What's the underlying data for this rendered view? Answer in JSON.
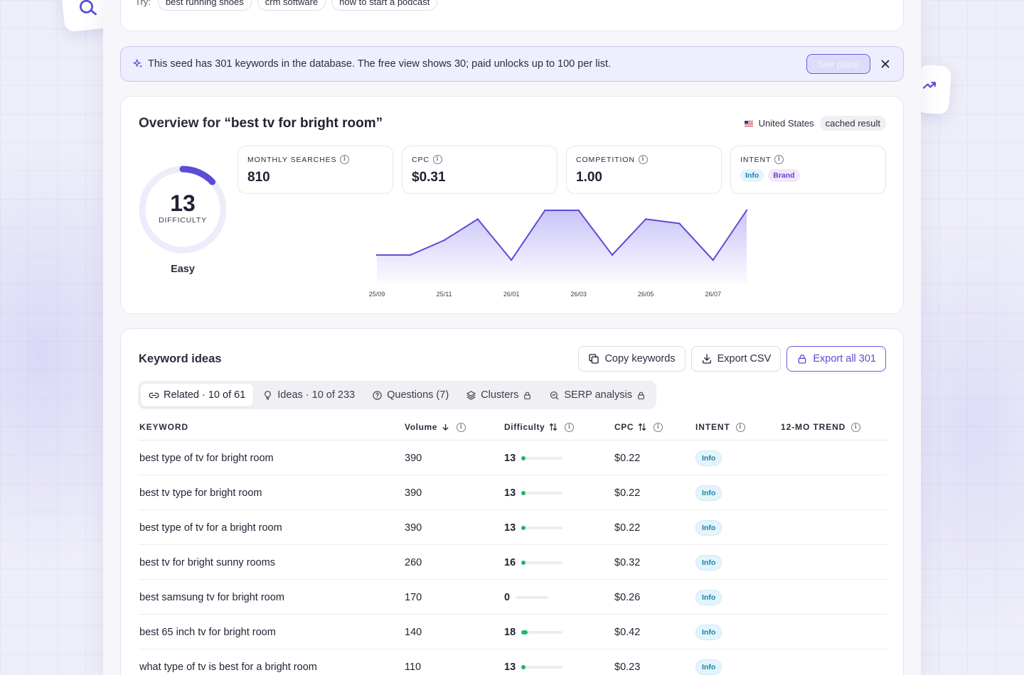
{
  "try": {
    "label": "Try:",
    "chips": [
      "best running shoes",
      "crm software",
      "how to start a podcast"
    ]
  },
  "banner": {
    "text": "This seed has 301 keywords in the database. The free view shows 30; paid unlocks up to 100 per list.",
    "cta": "See plans"
  },
  "overview": {
    "title_prefix": "Overview for",
    "title_query": "“best tv for bright room”",
    "country": "United States",
    "cached": "cached result",
    "difficulty": {
      "value": "13",
      "label": "DIFFICULTY",
      "rating": "Easy",
      "fraction": 0.13
    },
    "metrics": {
      "monthly_searches": {
        "label": "MONTHLY SEARCHES",
        "value": "810"
      },
      "cpc": {
        "label": "CPC",
        "value": "$0.31"
      },
      "competition": {
        "label": "COMPETITION",
        "value": "1.00"
      },
      "intent": {
        "label": "INTENT",
        "badges": [
          "Info",
          "Brand"
        ]
      }
    }
  },
  "chart_data": {
    "type": "area",
    "x": [
      "25/09",
      "25/10",
      "25/11",
      "25/12",
      "26/01",
      "26/02",
      "26/03",
      "26/04",
      "26/05",
      "26/06",
      "26/07",
      "26/08"
    ],
    "tick_labels": [
      "25/09",
      "25/11",
      "26/01",
      "26/03",
      "26/05",
      "26/07"
    ],
    "values": [
      390,
      390,
      590,
      880,
      320,
      1000,
      1000,
      390,
      880,
      820,
      320,
      1000
    ],
    "ylim": [
      0,
      1000
    ],
    "color": "#5b4bd6",
    "grid": false,
    "title": "",
    "xlabel": "",
    "ylabel": ""
  },
  "ideas": {
    "title": "Keyword ideas",
    "actions": {
      "copy": "Copy keywords",
      "export": "Export CSV",
      "export_all": "Export all 301"
    },
    "tabs": [
      "Related · 10 of 61",
      "Ideas · 10 of 233",
      "Questions (7)",
      "Clusters",
      "SERP analysis"
    ],
    "columns": [
      "KEYWORD",
      "Volume",
      "Difficulty",
      "CPC",
      "INTENT",
      "12-MO TREND"
    ],
    "rows": [
      {
        "keyword": "best type of tv for bright room",
        "volume": "390",
        "difficulty": "13",
        "cpc": "$0.22",
        "intent": "Info"
      },
      {
        "keyword": "best tv type for bright room",
        "volume": "390",
        "difficulty": "13",
        "cpc": "$0.22",
        "intent": "Info"
      },
      {
        "keyword": "best type of tv for a bright room",
        "volume": "390",
        "difficulty": "13",
        "cpc": "$0.22",
        "intent": "Info"
      },
      {
        "keyword": "best tv for bright sunny rooms",
        "volume": "260",
        "difficulty": "16",
        "cpc": "$0.32",
        "intent": "Info"
      },
      {
        "keyword": "best samsung tv for bright room",
        "volume": "170",
        "difficulty": "0",
        "cpc": "$0.26",
        "intent": "Info"
      },
      {
        "keyword": "best 65 inch tv for bright room",
        "volume": "140",
        "difficulty": "18",
        "cpc": "$0.42",
        "intent": "Info"
      },
      {
        "keyword": "what type of tv is best for a bright room",
        "volume": "110",
        "difficulty": "13",
        "cpc": "$0.23",
        "intent": "Info"
      }
    ]
  },
  "colors": {
    "accent": "#5b4bd6",
    "info": "#1c7fa8",
    "brand": "#6c3fc7",
    "easy": "#22b573"
  }
}
